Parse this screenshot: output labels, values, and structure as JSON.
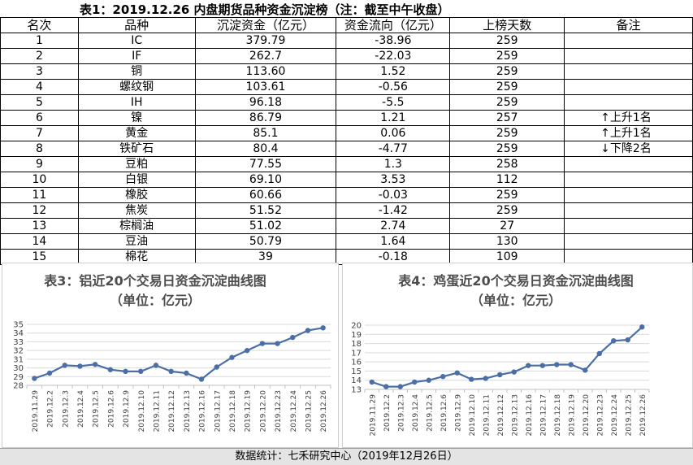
{
  "table": {
    "title": "表1：2019.12.26 内盘期货品种资金沉淀榜（注：截至中午收盘）",
    "headers": [
      "名次",
      "品种",
      "沉淀资金（亿元）",
      "资金流向（亿元）",
      "上榜天数",
      "备注"
    ],
    "rows": [
      [
        "1",
        "IC",
        "379.79",
        "-38.96",
        "259",
        ""
      ],
      [
        "2",
        "IF",
        "262.7",
        "-22.03",
        "259",
        ""
      ],
      [
        "3",
        "铜",
        "113.60",
        "1.52",
        "259",
        ""
      ],
      [
        "4",
        "螺纹钢",
        "103.61",
        "-0.56",
        "259",
        ""
      ],
      [
        "5",
        "IH",
        "96.18",
        "-5.5",
        "259",
        ""
      ],
      [
        "6",
        "镍",
        "86.79",
        "1.21",
        "257",
        "↑上升1名"
      ],
      [
        "7",
        "黄金",
        "85.1",
        "0.06",
        "259",
        "↑上升1名"
      ],
      [
        "8",
        "铁矿石",
        "80.4",
        "-4.77",
        "259",
        "↓下降2名"
      ],
      [
        "9",
        "豆粕",
        "77.55",
        "1.3",
        "258",
        ""
      ],
      [
        "10",
        "白银",
        "69.10",
        "3.53",
        "112",
        ""
      ],
      [
        "11",
        "橡胶",
        "60.66",
        "-0.03",
        "259",
        ""
      ],
      [
        "12",
        "焦炭",
        "51.52",
        "-1.42",
        "259",
        ""
      ],
      [
        "13",
        "棕榈油",
        "51.02",
        "2.74",
        "27",
        ""
      ],
      [
        "14",
        "豆油",
        "50.79",
        "1.64",
        "130",
        ""
      ],
      [
        "15",
        "棉花",
        "39",
        "-0.18",
        "109",
        ""
      ]
    ]
  },
  "chart_data": [
    {
      "type": "line",
      "title": "表3：铝近20个交易日资金沉淀曲线图",
      "subtitle": "（单位：亿元）",
      "categories": [
        "2019.11.29",
        "2019.12.2",
        "2019.12.3",
        "2019.12.4",
        "2019.12.5",
        "2019.12.6",
        "2019.12.9",
        "2019.12.10",
        "2019.12.11",
        "2019.12.12",
        "2019.12.13",
        "2019.12.16",
        "2019.12.17",
        "2019.12.18",
        "2019.12.19",
        "2019.12.20",
        "2019.12.23",
        "2019.12.24",
        "2019.12.25",
        "2019.12.26"
      ],
      "values": [
        28.8,
        29.4,
        30.3,
        30.2,
        30.4,
        29.8,
        29.6,
        29.6,
        30.3,
        29.6,
        29.4,
        28.7,
        30.1,
        31.2,
        32.0,
        32.8,
        32.8,
        33.5,
        34.3,
        34.6
      ],
      "ylim": [
        28,
        35
      ],
      "yticks": [
        28,
        29,
        30,
        31,
        32,
        33,
        34,
        35
      ],
      "grid": true,
      "color": "#4a6fa6"
    },
    {
      "type": "line",
      "title": "表4：鸡蛋近20个交易日资金沉淀曲线图",
      "subtitle": "（单位：亿元）",
      "categories": [
        "2019.11.29",
        "2019.12.2",
        "2019.12.3",
        "2019.12.4",
        "2019.12.5",
        "2019.12.6",
        "2019.12.9",
        "2019.12.10",
        "2019.12.11",
        "2019.12.12",
        "2019.12.13",
        "2019.12.16",
        "2019.12.17",
        "2019.12.18",
        "2019.12.19",
        "2019.12.20",
        "2019.12.23",
        "2019.12.24",
        "2019.12.25",
        "2019.12.26"
      ],
      "values": [
        13.8,
        13.3,
        13.3,
        13.8,
        14.0,
        14.4,
        14.8,
        14.1,
        14.2,
        14.6,
        14.9,
        15.6,
        15.6,
        15.7,
        15.7,
        15.1,
        16.9,
        18.3,
        18.4,
        19.8
      ],
      "ylim": [
        13,
        20
      ],
      "yticks": [
        13,
        14,
        15,
        16,
        17,
        18,
        19,
        20
      ],
      "grid": true,
      "color": "#4a6fa6"
    }
  ],
  "footer": "数据统计：七禾研究中心（2019年12月26日）"
}
